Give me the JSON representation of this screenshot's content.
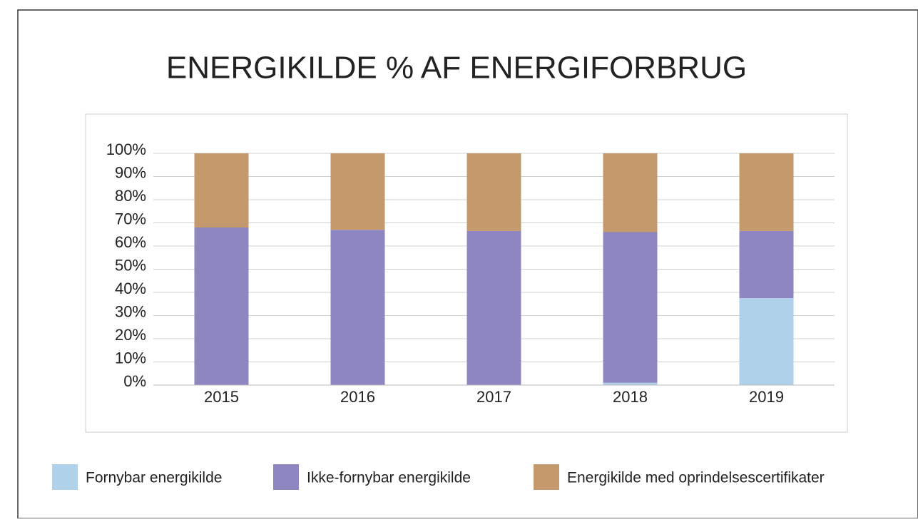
{
  "chart_data": {
    "type": "stacked_bar",
    "title": "ENERGIKILDE % AF ENERGIFORBRUG",
    "categories": [
      "2015",
      "2016",
      "2017",
      "2018",
      "2019"
    ],
    "series": [
      {
        "name": "Fornybar energikilde",
        "color": "#afd1ea",
        "values": [
          0,
          0,
          0,
          1,
          37.5
        ]
      },
      {
        "name": "Ikke-fornybar energikilde",
        "color": "#8e86c1",
        "values": [
          68,
          67,
          66.5,
          65,
          29
        ]
      },
      {
        "name": "Energikilde med oprindelsescertifikater",
        "color": "#c49a6c",
        "values": [
          32,
          33,
          33.5,
          34,
          33.5
        ]
      }
    ],
    "ylim": [
      0,
      100
    ],
    "yticks": [
      {
        "value": 0,
        "label": "0%"
      },
      {
        "value": 10,
        "label": "10%"
      },
      {
        "value": 20,
        "label": "20%"
      },
      {
        "value": 30,
        "label": "30%"
      },
      {
        "value": 40,
        "label": "40%"
      },
      {
        "value": 50,
        "label": "50%"
      },
      {
        "value": 60,
        "label": "60%"
      },
      {
        "value": 70,
        "label": "70%"
      },
      {
        "value": 80,
        "label": "80%"
      },
      {
        "value": 90,
        "label": "90%"
      },
      {
        "value": 100,
        "label": "100%"
      }
    ],
    "grid": true,
    "legend": "bottom"
  }
}
